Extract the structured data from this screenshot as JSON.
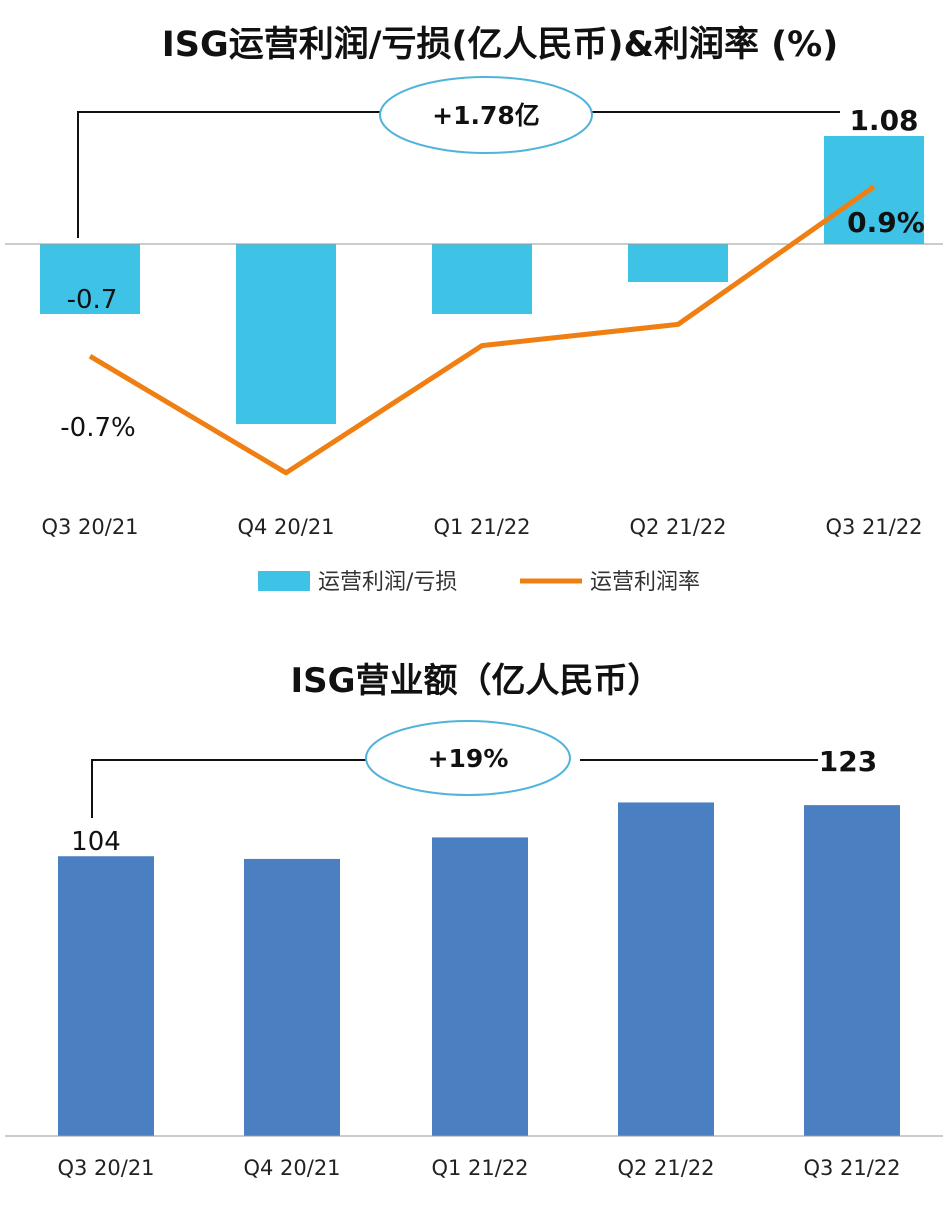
{
  "chart_data": [
    {
      "type": "bar+line",
      "title": "ISG运营利润/亏损(亿人民币)&利润率 (%)",
      "categories": [
        "Q3 20/21",
        "Q4 20/21",
        "Q1 21/22",
        "Q2 21/22",
        "Q3 21/22"
      ],
      "series": [
        {
          "name": "运营利润/亏损",
          "kind": "bar",
          "color": "#3ec3e6",
          "values": [
            -0.7,
            -1.8,
            -0.7,
            -0.38,
            1.08
          ]
        },
        {
          "name": "运营利润率",
          "kind": "line",
          "color": "#f07f13",
          "values": [
            -0.7,
            -1.8,
            -0.6,
            -0.4,
            0.9
          ]
        }
      ],
      "data_labels": {
        "bar_first": "-0.7",
        "bar_last": "1.08",
        "line_first": "-0.7%",
        "line_last": "0.9%"
      },
      "callout": "+1.78亿",
      "grid": false,
      "legend": "bottom"
    },
    {
      "type": "bar",
      "title": "ISG营业额（亿人民币）",
      "categories": [
        "Q3 20/21",
        "Q4 20/21",
        "Q1 21/22",
        "Q2 21/22",
        "Q3 21/22"
      ],
      "series": [
        {
          "name": "",
          "color": "#4a7fc1",
          "values": [
            104,
            103,
            111,
            124,
            123
          ]
        }
      ],
      "data_labels": {
        "first": "104",
        "last": "123"
      },
      "callout": "+19%",
      "ylim": [
        0,
        140
      ],
      "grid": false
    }
  ]
}
